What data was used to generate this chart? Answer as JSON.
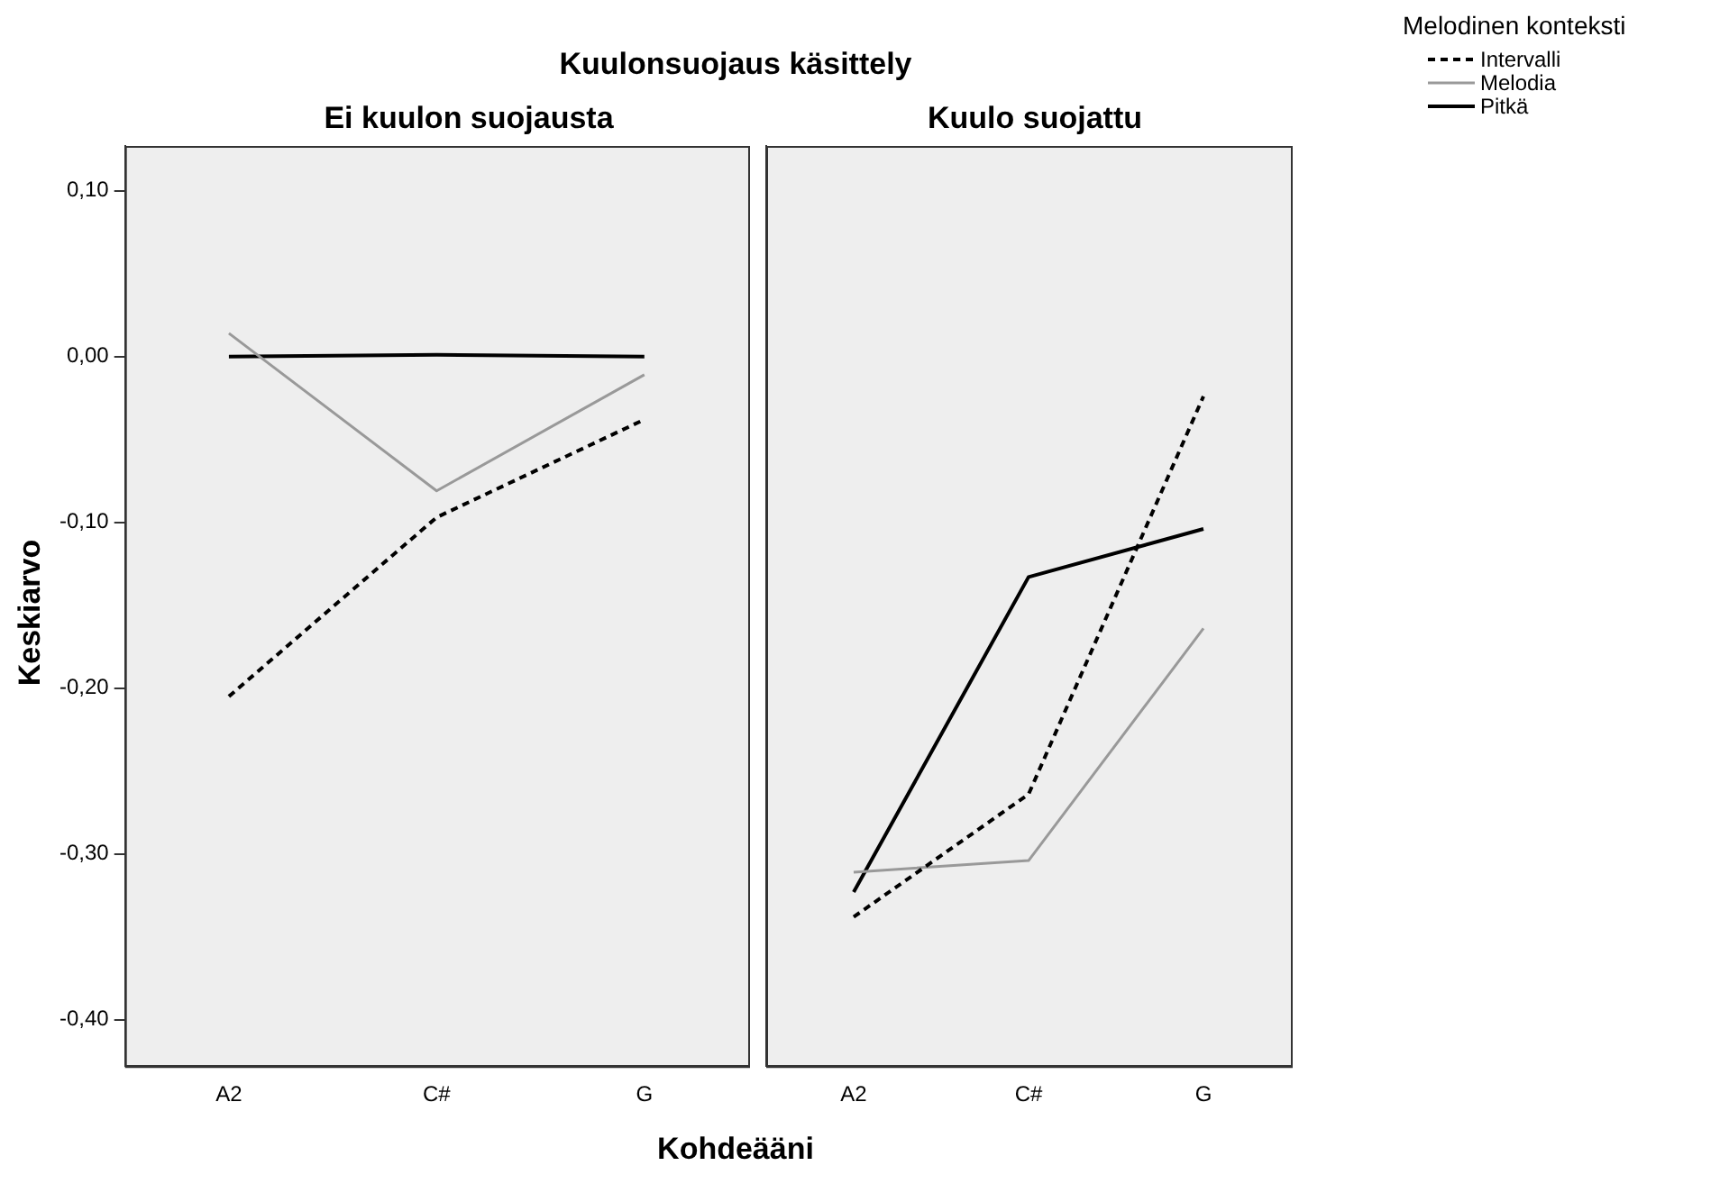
{
  "chart_data": [
    {
      "type": "line",
      "title": "Kuulonsuojaus käsittely",
      "subtitle": "Ei kuulon suojausta",
      "xlabel": "Kohdeääni",
      "ylabel": "Keskiarvo",
      "categories": [
        "A2",
        "C#",
        "G"
      ],
      "series": [
        {
          "name": "Intervalli",
          "color": "#000000",
          "line_style": "dashed",
          "values": [
            -0.205,
            -0.097,
            -0.038
          ]
        },
        {
          "name": "Melodia",
          "color": "#999999",
          "line_style": "solid",
          "values": [
            0.014,
            -0.081,
            -0.011
          ]
        },
        {
          "name": "Pitkä",
          "color": "#000000",
          "line_style": "solid",
          "values": [
            0.0,
            0.001,
            0.0
          ]
        }
      ],
      "ylim": [
        -0.428,
        0.127
      ],
      "yticks": [
        {
          "value": 0.1,
          "label": "0,10"
        },
        {
          "value": 0,
          "label": "0,00"
        },
        {
          "value": -0.1,
          "label": "-0,10"
        },
        {
          "value": -0.2,
          "label": "-0,20"
        },
        {
          "value": -0.3,
          "label": "-0,30"
        },
        {
          "value": -0.4,
          "label": "-0,40"
        }
      ],
      "marker": "none",
      "grid": false,
      "legend": "top right",
      "legend_title": "Melodinen konteksti"
    },
    {
      "type": "line",
      "subtitle": "Kuulo suojattu",
      "categories": [
        "A2",
        "C#",
        "G"
      ],
      "series": [
        {
          "color": "#000000",
          "line_style": "dashed",
          "values": [
            -0.338,
            -0.264,
            -0.024
          ]
        },
        {
          "color": "#999999",
          "line_style": "solid",
          "values": [
            -0.311,
            -0.304,
            -0.164
          ]
        },
        {
          "color": "#000000",
          "line_style": "solid",
          "values": [
            -0.323,
            -0.133,
            -0.104
          ]
        }
      ],
      "ylim": [
        -0.428,
        0.127
      ],
      "tick_labels": "x",
      "marker": "none",
      "grid": false
    }
  ]
}
